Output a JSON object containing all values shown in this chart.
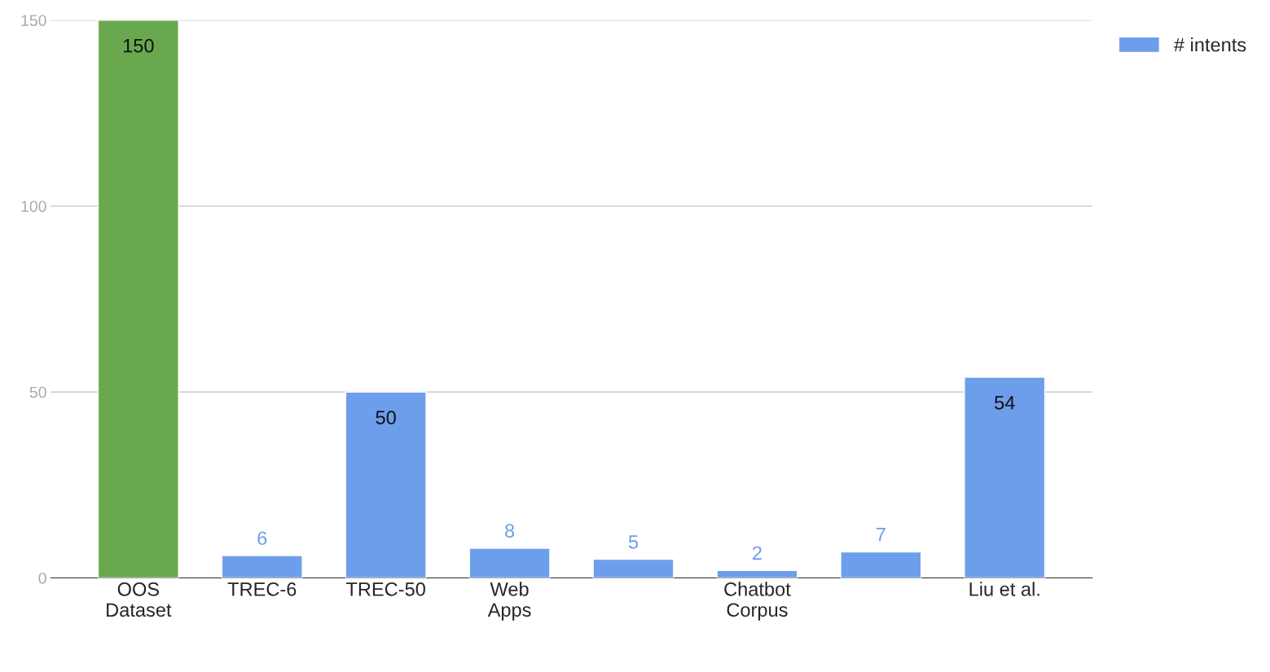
{
  "chart_data": {
    "type": "bar",
    "categories": [
      "OOS\nDataset",
      "TREC-6",
      "TREC-50",
      "Web\nApps",
      null,
      "Chatbot\nCorpus",
      null,
      "Liu et al."
    ],
    "series": [
      {
        "name": "# intents",
        "color": "#6d9eeb",
        "colors": [
          "#6aa84f",
          "#6d9eeb",
          "#6d9eeb",
          "#6d9eeb",
          "#6d9eeb",
          "#6d9eeb",
          "#6d9eeb",
          "#6d9eeb"
        ],
        "values": [
          150,
          6,
          50,
          8,
          5,
          2,
          7,
          54
        ]
      }
    ],
    "ylim": [
      0,
      150
    ],
    "yticks": [
      0,
      50,
      100,
      150
    ],
    "grid": "y",
    "legend": "top right",
    "data_labels": true
  }
}
